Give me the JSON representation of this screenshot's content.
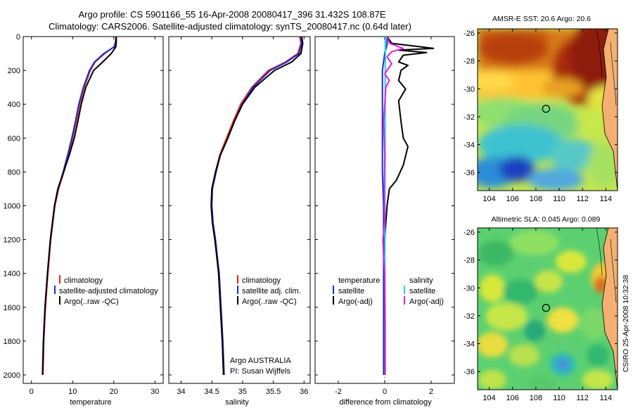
{
  "figure": {
    "title_line1": "Argo profile: CS 5901166_55 16-Apr-2008 20080417_396 31.432S 108.87E",
    "title_line2": "Climatology: CARS2006. Satellite-adjusted climatology: synTS_20080417.nc (0.64d later)",
    "side_note": "CSIRO 25-Apr-2008 10:32:38",
    "credit_line1": "Argo AUSTRALIA",
    "credit_line2": "PI: Susan Wijffels"
  },
  "chart_data": [
    {
      "type": "line",
      "id": "temperature",
      "xlabel": "temperature",
      "ylabel": "",
      "xlim": [
        -2,
        32
      ],
      "ylim": [
        2050,
        0
      ],
      "xticks": [
        0,
        10,
        20,
        30
      ],
      "yticks": [
        0,
        200,
        400,
        600,
        800,
        1000,
        1200,
        1400,
        1600,
        1800,
        2000
      ],
      "legend": [
        "climatology",
        "satellite-adjusted climatology",
        "Argo(..raw -QC)"
      ],
      "series": [
        {
          "name": "climatology",
          "color": "#e8201c",
          "points": [
            [
              20.5,
              0
            ],
            [
              20.4,
              30
            ],
            [
              20.1,
              60
            ],
            [
              17.8,
              100
            ],
            [
              15.5,
              150
            ],
            [
              14.3,
              200
            ],
            [
              12.8,
              300
            ],
            [
              11.7,
              400
            ],
            [
              10.9,
              500
            ],
            [
              10.0,
              600
            ],
            [
              9.0,
              700
            ],
            [
              7.9,
              800
            ],
            [
              6.6,
              900
            ],
            [
              5.7,
              1000
            ],
            [
              4.7,
              1200
            ],
            [
              4.0,
              1400
            ],
            [
              3.4,
              1600
            ],
            [
              3.0,
              1800
            ],
            [
              2.8,
              2000
            ]
          ]
        },
        {
          "name": "satellite-adjusted climatology",
          "color": "#1c2bd8",
          "points": [
            [
              20.6,
              0
            ],
            [
              20.5,
              30
            ],
            [
              20.2,
              60
            ],
            [
              17.6,
              100
            ],
            [
              15.3,
              150
            ],
            [
              14.1,
              200
            ],
            [
              12.6,
              300
            ],
            [
              11.5,
              400
            ],
            [
              10.7,
              500
            ],
            [
              9.8,
              600
            ],
            [
              8.8,
              700
            ],
            [
              7.7,
              800
            ],
            [
              6.5,
              900
            ],
            [
              5.6,
              1000
            ],
            [
              4.6,
              1200
            ],
            [
              3.9,
              1400
            ],
            [
              3.3,
              1600
            ],
            [
              2.9,
              1800
            ],
            [
              2.7,
              2000
            ]
          ]
        },
        {
          "name": "Argo(..raw -QC)",
          "color": "#000000",
          "points": [
            [
              20.6,
              0
            ],
            [
              20.6,
              30
            ],
            [
              20.5,
              60
            ],
            [
              19.4,
              100
            ],
            [
              17.3,
              150
            ],
            [
              15.1,
              200
            ],
            [
              13.2,
              300
            ],
            [
              12.1,
              400
            ],
            [
              11.3,
              500
            ],
            [
              10.4,
              600
            ],
            [
              9.2,
              700
            ],
            [
              7.8,
              800
            ],
            [
              6.4,
              900
            ],
            [
              5.6,
              1000
            ],
            [
              4.6,
              1200
            ],
            [
              3.9,
              1400
            ],
            [
              3.3,
              1600
            ],
            [
              2.9,
              1800
            ],
            [
              2.7,
              2000
            ]
          ]
        }
      ]
    },
    {
      "type": "line",
      "id": "salinity",
      "xlabel": "salinity",
      "xlim": [
        33.8,
        36.1
      ],
      "ylim": [
        2050,
        0
      ],
      "xticks": [
        34,
        34.5,
        35,
        35.5,
        36
      ],
      "xticklabels": [
        "34",
        "34.5",
        "35",
        "35.5",
        "36"
      ],
      "legend": [
        "climatology",
        "satellite adj. clim.",
        "Argo(..raw -QC)"
      ],
      "series": [
        {
          "name": "climatology",
          "color": "#e8201c",
          "points": [
            [
              35.93,
              0
            ],
            [
              35.95,
              40
            ],
            [
              35.9,
              100
            ],
            [
              35.7,
              150
            ],
            [
              35.42,
              200
            ],
            [
              35.15,
              300
            ],
            [
              34.97,
              400
            ],
            [
              34.85,
              500
            ],
            [
              34.74,
              600
            ],
            [
              34.63,
              700
            ],
            [
              34.56,
              800
            ],
            [
              34.5,
              900
            ],
            [
              34.49,
              1000
            ],
            [
              34.51,
              1100
            ],
            [
              34.55,
              1200
            ],
            [
              34.58,
              1300
            ],
            [
              34.61,
              1400
            ],
            [
              34.64,
              1600
            ],
            [
              34.67,
              1800
            ],
            [
              34.69,
              2000
            ]
          ]
        },
        {
          "name": "satellite adj. clim.",
          "color": "#1c2bd8",
          "points": [
            [
              35.95,
              0
            ],
            [
              35.96,
              40
            ],
            [
              35.92,
              100
            ],
            [
              35.72,
              150
            ],
            [
              35.45,
              200
            ],
            [
              35.17,
              300
            ],
            [
              34.99,
              400
            ],
            [
              34.87,
              500
            ],
            [
              34.76,
              600
            ],
            [
              34.64,
              700
            ],
            [
              34.57,
              800
            ],
            [
              34.51,
              900
            ],
            [
              34.5,
              1000
            ],
            [
              34.52,
              1100
            ],
            [
              34.56,
              1200
            ],
            [
              34.59,
              1300
            ],
            [
              34.62,
              1400
            ],
            [
              34.65,
              1600
            ],
            [
              34.68,
              1800
            ],
            [
              34.7,
              2000
            ]
          ]
        },
        {
          "name": "Argo(..raw -QC)",
          "color": "#000000",
          "points": [
            [
              35.96,
              0
            ],
            [
              35.98,
              40
            ],
            [
              35.95,
              100
            ],
            [
              35.8,
              150
            ],
            [
              35.52,
              200
            ],
            [
              35.2,
              300
            ],
            [
              35.0,
              400
            ],
            [
              34.87,
              500
            ],
            [
              34.76,
              600
            ],
            [
              34.64,
              700
            ],
            [
              34.56,
              800
            ],
            [
              34.5,
              900
            ],
            [
              34.49,
              1000
            ],
            [
              34.51,
              1100
            ],
            [
              34.55,
              1200
            ],
            [
              34.58,
              1300
            ],
            [
              34.61,
              1400
            ],
            [
              34.64,
              1600
            ],
            [
              34.67,
              1800
            ],
            [
              34.69,
              2000
            ]
          ]
        }
      ]
    },
    {
      "type": "line",
      "id": "difference",
      "xlabel": "difference from climatology",
      "xlim": [
        -3,
        3
      ],
      "ylim": [
        2050,
        0
      ],
      "xticks": [
        -2,
        0,
        2
      ],
      "legend_temperature": {
        "heading": "temperature",
        "items": [
          "satellite",
          "Argo(-adj)"
        ]
      },
      "legend_salinity": {
        "heading": "salinity",
        "items": [
          "satellite",
          "Argo(-adj)"
        ]
      },
      "series": [
        {
          "name": "temperature satellite",
          "color": "#1c2bd8",
          "points": [
            [
              0.1,
              0
            ],
            [
              0.1,
              50
            ],
            [
              0.0,
              100
            ],
            [
              -0.1,
              200
            ],
            [
              -0.1,
              400
            ],
            [
              -0.1,
              600
            ],
            [
              -0.1,
              800
            ],
            [
              -0.05,
              1000
            ],
            [
              -0.05,
              1400
            ],
            [
              -0.05,
              2000
            ]
          ]
        },
        {
          "name": "temperature Argo(-adj)",
          "color": "#000000",
          "points": [
            [
              0.1,
              0
            ],
            [
              0.3,
              40
            ],
            [
              2.1,
              70
            ],
            [
              0.6,
              80
            ],
            [
              1.8,
              95
            ],
            [
              0.8,
              110
            ],
            [
              0.6,
              150
            ],
            [
              1.0,
              170
            ],
            [
              0.7,
              200
            ],
            [
              0.6,
              260
            ],
            [
              0.9,
              310
            ],
            [
              0.6,
              380
            ],
            [
              0.7,
              500
            ],
            [
              0.8,
              600
            ],
            [
              1.0,
              650
            ],
            [
              0.8,
              760
            ],
            [
              0.5,
              850
            ],
            [
              0.2,
              900
            ],
            [
              0.1,
              1000
            ],
            [
              0.0,
              1200
            ],
            [
              0.0,
              1400
            ],
            [
              0.0,
              2000
            ]
          ]
        },
        {
          "name": "salinity satellite",
          "color": "#22d3e8",
          "points": [
            [
              0.03,
              0
            ],
            [
              0.03,
              100
            ],
            [
              0.02,
              300
            ],
            [
              0.02,
              700
            ],
            [
              0.01,
              1000
            ],
            [
              0.01,
              1500
            ],
            [
              0.01,
              2000
            ]
          ]
        },
        {
          "name": "salinity Argo(-adj)",
          "color": "#e020e0",
          "points": [
            [
              0.1,
              0
            ],
            [
              0.2,
              40
            ],
            [
              0.8,
              70
            ],
            [
              0.3,
              90
            ],
            [
              0.1,
              120
            ],
            [
              0.3,
              160
            ],
            [
              0.0,
              220
            ],
            [
              0.2,
              260
            ],
            [
              0.05,
              300
            ],
            [
              0.0,
              400
            ],
            [
              -0.05,
              500
            ],
            [
              0.0,
              700
            ],
            [
              -0.02,
              900
            ],
            [
              0.0,
              1100
            ],
            [
              -0.08,
              1200
            ],
            [
              -0.05,
              1300
            ],
            [
              0.0,
              1400
            ],
            [
              0.02,
              1700
            ],
            [
              0.02,
              2000
            ]
          ]
        }
      ]
    },
    {
      "type": "heatmap",
      "id": "sst_map",
      "title": "AMSR-E SST: 20.6 Argo: 20.6",
      "xlim": [
        103,
        115
      ],
      "ylim": [
        -37.3,
        -25.7
      ],
      "xticks": [
        104,
        106,
        108,
        110,
        112,
        114
      ],
      "yticks": [
        -26,
        -28,
        -30,
        -32,
        -34,
        -36
      ],
      "marker": {
        "lon": 108.87,
        "lat": -31.43
      }
    },
    {
      "type": "heatmap",
      "id": "sla_map",
      "title": "Altimetric SLA: 0.045 Argo: 0.089",
      "xlim": [
        103,
        115
      ],
      "ylim": [
        -37.3,
        -25.7
      ],
      "xticks": [
        104,
        106,
        108,
        110,
        112,
        114
      ],
      "yticks": [
        -26,
        -28,
        -30,
        -32,
        -34,
        -36
      ],
      "marker": {
        "lon": 108.87,
        "lat": -31.43
      }
    }
  ]
}
